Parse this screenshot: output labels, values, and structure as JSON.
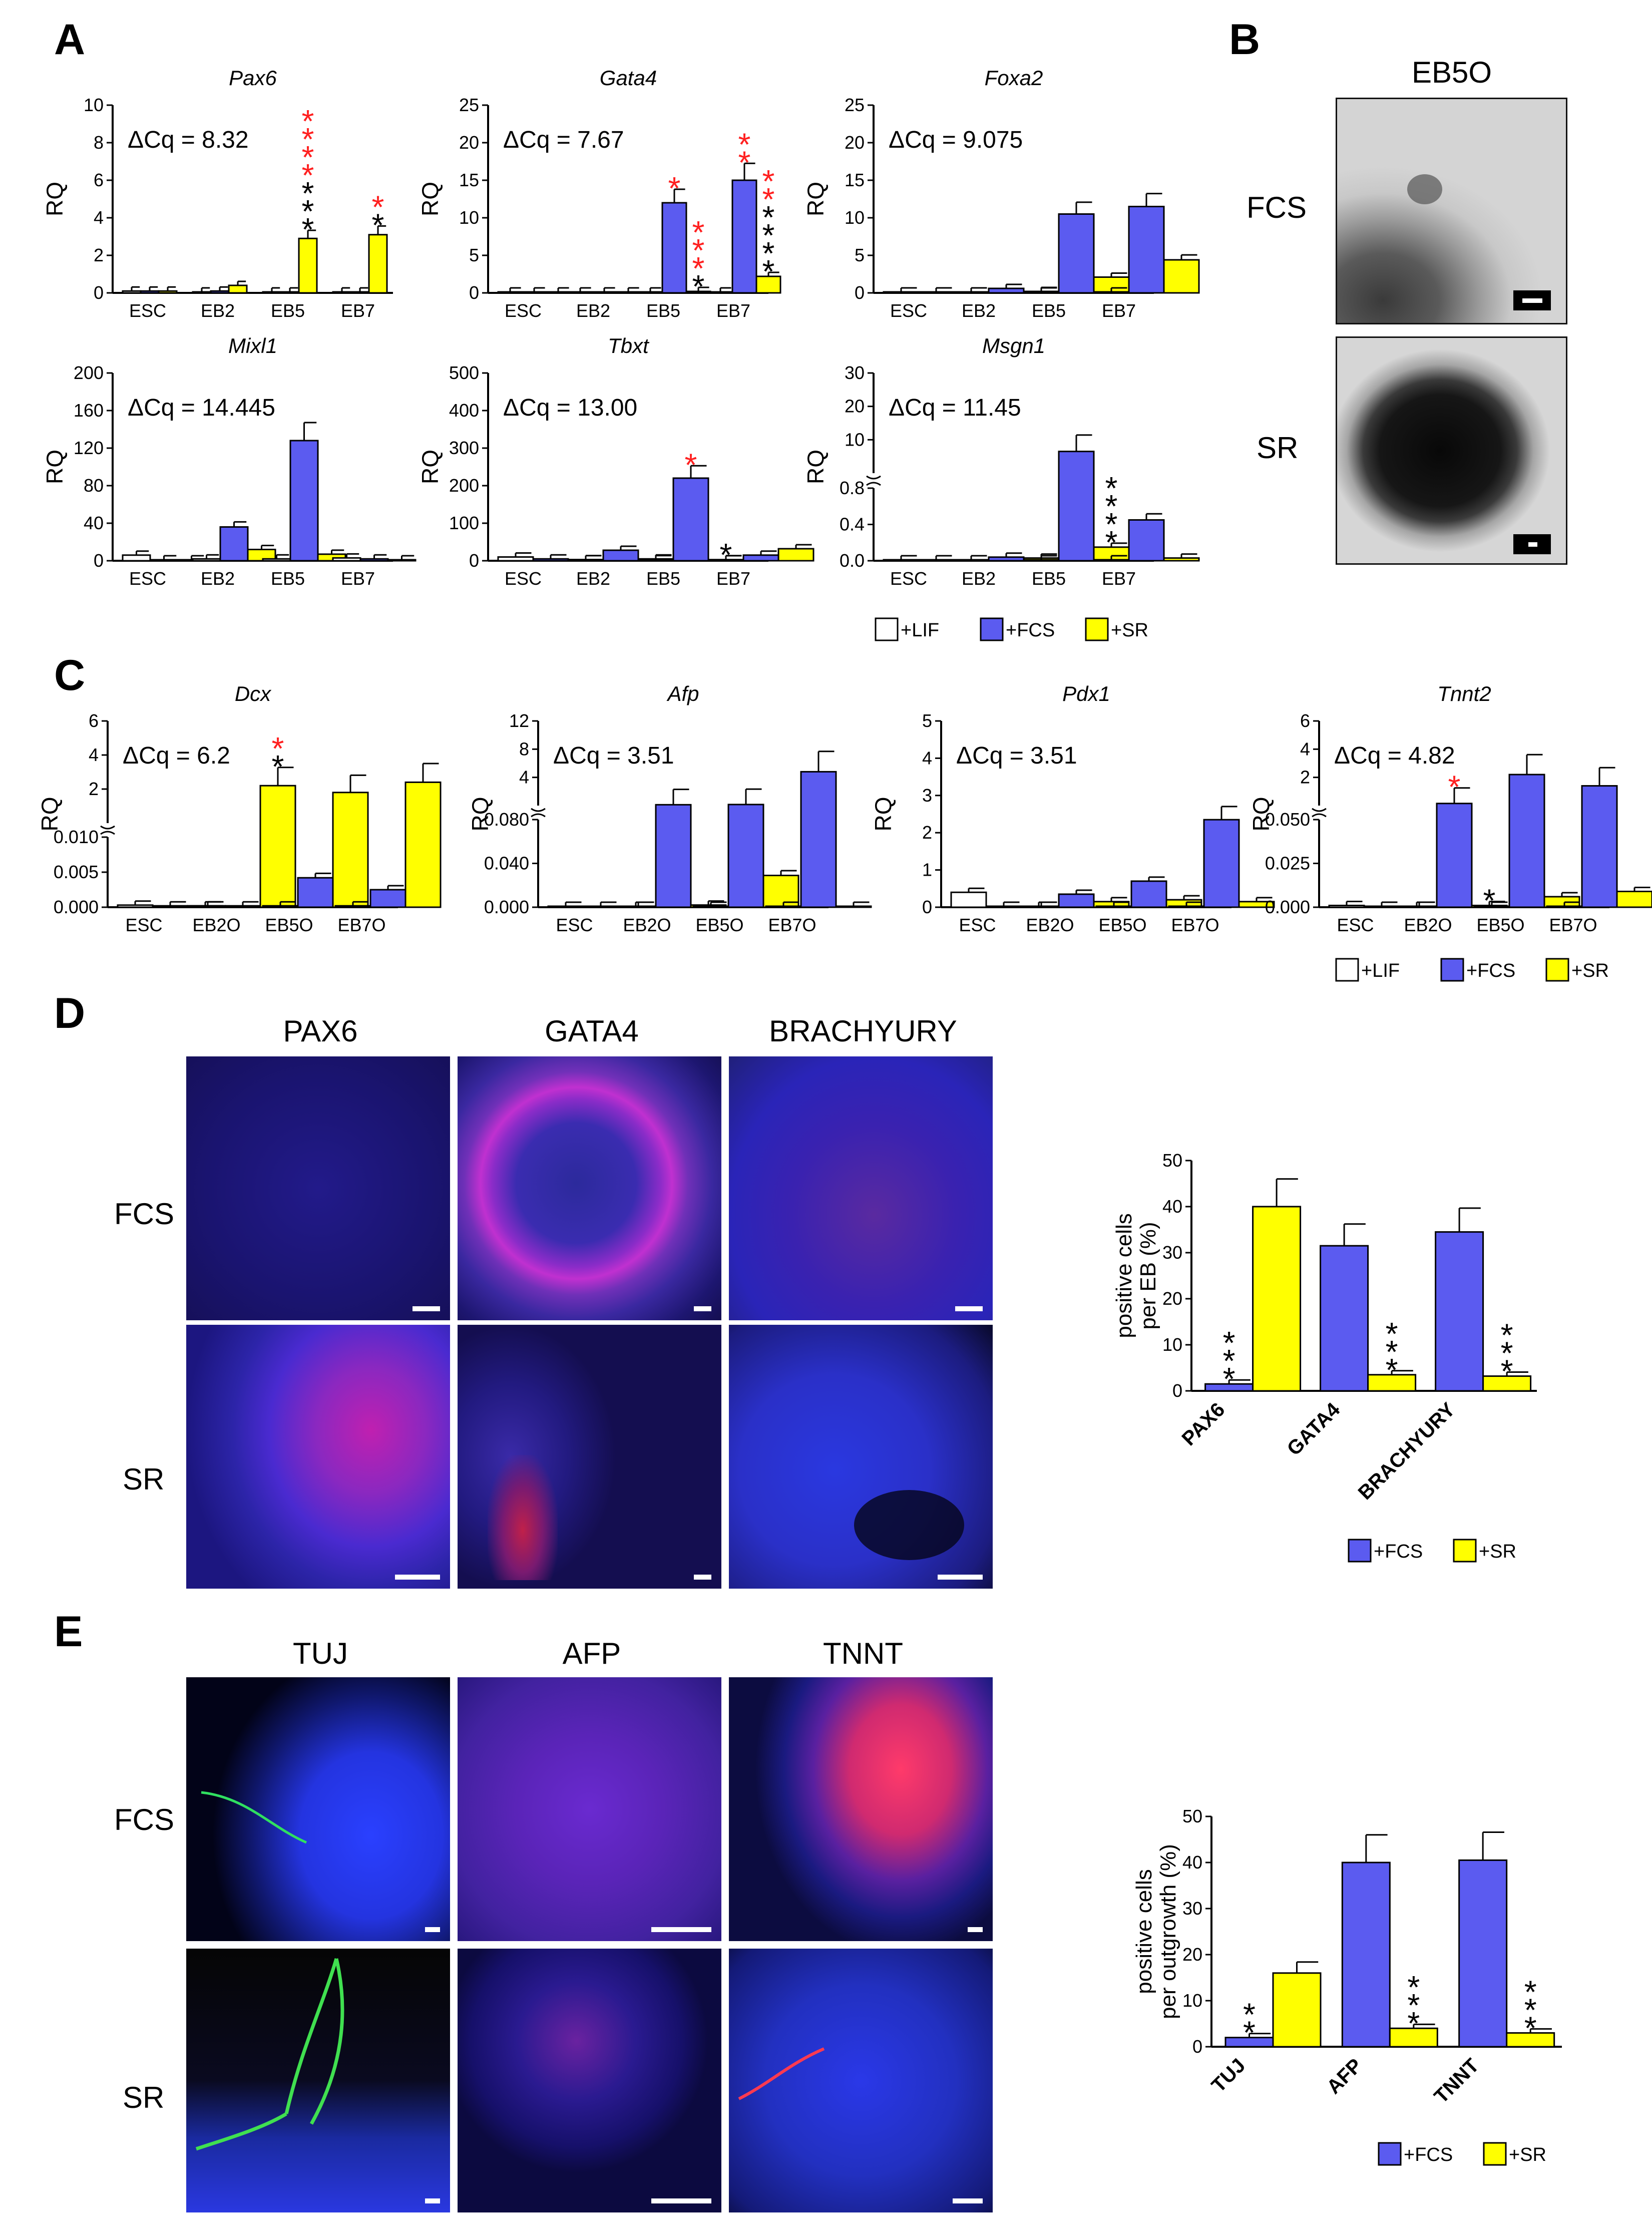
{
  "panels": {
    "a": "A",
    "b": "B",
    "c": "C",
    "d": "D",
    "e": "E"
  },
  "colors": {
    "lif": "#ffffff",
    "fcs": "#5b5bf0",
    "sr": "#ffff00",
    "sig_red": "#ff2020",
    "sig_black": "#000000",
    "fcs_img": "#3232ff"
  },
  "panelB": {
    "title": "EB5O",
    "rows": [
      "FCS",
      "SR"
    ]
  },
  "panelD": {
    "columns": [
      "PAX6",
      "GATA4",
      "BRACHYURY"
    ],
    "rows": [
      "FCS",
      "SR"
    ]
  },
  "panelE": {
    "columns": [
      "TUJ",
      "AFP",
      "TNNT"
    ],
    "rows": [
      "FCS",
      "SR"
    ]
  },
  "legendA": [
    "+LIF",
    "+FCS",
    "+SR"
  ],
  "legendC": [
    "+LIF",
    "+FCS",
    "+SR"
  ],
  "legendD": [
    "+FCS",
    "+SR"
  ],
  "legendE": [
    "+FCS",
    "+SR"
  ],
  "chart_data": [
    {
      "id": "pax6",
      "type": "bar",
      "title": "Pax6",
      "annotation": "ΔCq = 8.32",
      "ylabel": "RQ",
      "ylim": [
        0,
        10
      ],
      "yticks": [
        "0",
        "2",
        "4",
        "6",
        "8",
        "10"
      ],
      "categories": [
        "ESC",
        "EB2",
        "EB5",
        "EB7"
      ],
      "series": [
        {
          "name": "+LIF",
          "values": [
            0.1,
            0.05,
            0.05,
            0.05
          ]
        },
        {
          "name": "+FCS",
          "values": [
            0.1,
            0.1,
            0.05,
            0.05
          ]
        },
        {
          "name": "+SR",
          "values": [
            0.1,
            0.4,
            2.9,
            3.1
          ]
        }
      ],
      "annotations": [
        {
          "series": 2,
          "category": 2,
          "red": "****",
          "black": "***"
        },
        {
          "series": 2,
          "category": 3,
          "red": "*",
          "black": "*"
        }
      ]
    },
    {
      "id": "gata4",
      "type": "bar",
      "title": "Gata4",
      "annotation": "ΔCq = 7.67",
      "ylabel": "RQ",
      "ylim": [
        0,
        25
      ],
      "yticks": [
        "0",
        "5",
        "10",
        "15",
        "20",
        "25"
      ],
      "categories": [
        "ESC",
        "EB2",
        "EB5",
        "EB7"
      ],
      "series": [
        {
          "name": "+LIF",
          "values": [
            0.05,
            0.05,
            0.05,
            0.05
          ]
        },
        {
          "name": "+FCS",
          "values": [
            0.05,
            0.1,
            12,
            15
          ]
        },
        {
          "name": "+SR",
          "values": [
            0.05,
            0.05,
            0.2,
            2.2
          ]
        }
      ],
      "annotations": [
        {
          "series": 1,
          "category": 2,
          "red": "*",
          "black": ""
        },
        {
          "series": 1,
          "category": 3,
          "red": "**",
          "black": ""
        },
        {
          "series": 2,
          "category": 2,
          "red": "***",
          "black": "*"
        },
        {
          "series": 2,
          "category": 3,
          "red": "**",
          "black": "****"
        }
      ]
    },
    {
      "id": "foxa2",
      "type": "bar",
      "title": "Foxa2",
      "annotation": "ΔCq = 9.075",
      "ylabel": "RQ",
      "ylim": [
        0,
        25
      ],
      "yticks": [
        "0",
        "5",
        "10",
        "15",
        "20",
        "25"
      ],
      "categories": [
        "ESC",
        "EB2",
        "EB5",
        "EB7"
      ],
      "series": [
        {
          "name": "+LIF",
          "values": [
            0.05,
            0.05,
            0.05,
            0.05
          ]
        },
        {
          "name": "+FCS",
          "values": [
            0.05,
            0.6,
            10.5,
            11.5
          ]
        },
        {
          "name": "+SR",
          "values": [
            0.05,
            0.2,
            2.1,
            4.4
          ]
        }
      ],
      "annotations": []
    },
    {
      "id": "mixl1",
      "type": "bar",
      "title": "Mixl1",
      "annotation": "ΔCq = 14.445",
      "ylabel": "RQ",
      "ylim": [
        0,
        200
      ],
      "yticks": [
        "0",
        "40",
        "80",
        "120",
        "160",
        "200"
      ],
      "categories": [
        "ESC",
        "EB2",
        "EB5",
        "EB7"
      ],
      "series": [
        {
          "name": "+LIF",
          "values": [
            6,
            2,
            2,
            3
          ]
        },
        {
          "name": "+FCS",
          "values": [
            1,
            36,
            128,
            2
          ]
        },
        {
          "name": "+SR",
          "values": [
            1,
            12,
            7,
            1
          ]
        }
      ],
      "annotations": []
    },
    {
      "id": "tbxt",
      "type": "bar",
      "title": "Tbxt",
      "annotation": "ΔCq = 13.00",
      "ylabel": "RQ",
      "ylim": [
        0,
        500
      ],
      "yticks": [
        "0",
        "100",
        "200",
        "300",
        "400",
        "500"
      ],
      "categories": [
        "ESC",
        "EB2",
        "EB5",
        "EB7"
      ],
      "series": [
        {
          "name": "+LIF",
          "values": [
            10,
            3,
            3,
            3
          ]
        },
        {
          "name": "+FCS",
          "values": [
            5,
            28,
            220,
            15
          ]
        },
        {
          "name": "+SR",
          "values": [
            3,
            5,
            2,
            32
          ]
        }
      ],
      "annotations": [
        {
          "series": 1,
          "category": 2,
          "red": "*",
          "black": ""
        },
        {
          "series": 2,
          "category": 2,
          "red": "",
          "black": "*"
        }
      ]
    },
    {
      "id": "msgn1",
      "type": "bar",
      "title": "Msgn1",
      "annotation": "ΔCq = 11.45",
      "ylabel": "RQ",
      "broken": true,
      "lowTicks": [
        "0.0",
        "0.4",
        "0.8"
      ],
      "highTicks": [
        "10",
        "20",
        "30"
      ],
      "categories": [
        "ESC",
        "EB2",
        "EB5",
        "EB7"
      ],
      "series": [
        {
          "name": "+LIF",
          "values": [
            0.01,
            0.005,
            0.005,
            0.005
          ]
        },
        {
          "name": "+FCS",
          "values": [
            0.005,
            0.04,
            6.5,
            0.45
          ]
        },
        {
          "name": "+SR",
          "values": [
            0.005,
            0.03,
            0.15,
            0.03
          ]
        }
      ],
      "annotations": [
        {
          "series": 2,
          "category": 2,
          "red": "",
          "black": "****"
        }
      ]
    },
    {
      "id": "dcx",
      "type": "bar",
      "title": "Dcx",
      "annotation": "ΔCq = 6.2",
      "ylabel": "RQ",
      "broken": true,
      "lowTicks": [
        "0.000",
        "0.005",
        "0.010"
      ],
      "highTicks": [
        "2",
        "4",
        "6"
      ],
      "categories": [
        "ESC",
        "EB2O",
        "EB5O",
        "EB7O"
      ],
      "series": [
        {
          "name": "+LIF",
          "values": [
            0.0003,
            0.0002,
            0.0002,
            0.0002
          ]
        },
        {
          "name": "+FCS",
          "values": [
            0.0002,
            0.0002,
            0.0042,
            0.0025
          ]
        },
        {
          "name": "+SR",
          "values": [
            0.0002,
            2.2,
            1.8,
            2.4
          ]
        }
      ],
      "annotations": [
        {
          "series": 2,
          "category": 1,
          "red": "*",
          "black": "*"
        }
      ]
    },
    {
      "id": "afp",
      "type": "bar",
      "title": "Afp",
      "annotation": "ΔCq = 3.51",
      "ylabel": "RQ",
      "broken": true,
      "lowTicks": [
        "0.000",
        "0.040",
        "0.080"
      ],
      "highTicks": [
        "4",
        "8",
        "12"
      ],
      "categories": [
        "ESC",
        "EB2O",
        "EB5O",
        "EB7O"
      ],
      "series": [
        {
          "name": "+LIF",
          "values": [
            0.0005,
            0.0005,
            0.0005,
            0.0005
          ]
        },
        {
          "name": "+FCS",
          "values": [
            0.0005,
            0.12,
            0.15,
            4.8
          ]
        },
        {
          "name": "+SR",
          "values": [
            0.0005,
            0.002,
            0.029,
            0.0005
          ]
        }
      ],
      "annotations": []
    },
    {
      "id": "pdx1",
      "type": "bar",
      "title": "Pdx1",
      "annotation": "ΔCq = 3.51",
      "ylabel": "RQ",
      "ylim": [
        0,
        5
      ],
      "yticks": [
        "0",
        "1",
        "2",
        "3",
        "4",
        "5"
      ],
      "categories": [
        "ESC",
        "EB2O",
        "EB5O",
        "EB7O"
      ],
      "series": [
        {
          "name": "+LIF",
          "values": [
            0.4,
            0.02,
            0.02,
            0.02
          ]
        },
        {
          "name": "+FCS",
          "values": [
            0.02,
            0.35,
            0.7,
            2.35
          ]
        },
        {
          "name": "+SR",
          "values": [
            0.02,
            0.15,
            0.2,
            0.15
          ]
        }
      ],
      "annotations": []
    },
    {
      "id": "tnnt2",
      "type": "bar",
      "title": "Tnnt2",
      "annotation": "ΔCq = 4.82",
      "ylabel": "RQ",
      "broken": true,
      "lowTicks": [
        "0.000",
        "0.025",
        "0.050"
      ],
      "highTicks": [
        "2",
        "4",
        "6"
      ],
      "categories": [
        "ESC",
        "EB2O",
        "EB5O",
        "EB7O"
      ],
      "series": [
        {
          "name": "+LIF",
          "values": [
            0.001,
            0.0005,
            0.0005,
            0.0005
          ]
        },
        {
          "name": "+FCS",
          "values": [
            0.0005,
            0.15,
            2.2,
            1.4
          ]
        },
        {
          "name": "+SR",
          "values": [
            0.0005,
            0.001,
            0.006,
            0.009
          ]
        }
      ],
      "annotations": [
        {
          "series": 1,
          "category": 1,
          "red": "*",
          "black": ""
        },
        {
          "series": 2,
          "category": 1,
          "red": "",
          "black": "*"
        }
      ]
    },
    {
      "id": "d_quant",
      "type": "bar",
      "ylabel": "positive cells per EB (%)",
      "ylim": [
        0,
        50
      ],
      "yticks": [
        "0",
        "10",
        "20",
        "30",
        "40",
        "50"
      ],
      "categories": [
        "PAX6",
        "GATA4",
        "BRACHYURY"
      ],
      "series": [
        {
          "name": "+FCS",
          "values": [
            1.5,
            31.5,
            34.5
          ]
        },
        {
          "name": "+SR",
          "values": [
            40,
            3.5,
            3.2
          ]
        }
      ],
      "annotations": [
        {
          "series": 0,
          "category": 0,
          "black": "***"
        },
        {
          "series": 1,
          "category": 1,
          "black": "***"
        },
        {
          "series": 1,
          "category": 2,
          "black": "***"
        }
      ]
    },
    {
      "id": "e_quant",
      "type": "bar",
      "ylabel": "positive cells per outgrowth (%)",
      "ylim": [
        0,
        50
      ],
      "yticks": [
        "0",
        "10",
        "20",
        "30",
        "40",
        "50"
      ],
      "categories": [
        "TUJ",
        "AFP",
        "TNNT"
      ],
      "series": [
        {
          "name": "+FCS",
          "values": [
            2,
            40,
            40.5
          ]
        },
        {
          "name": "+SR",
          "values": [
            16,
            4,
            3
          ]
        }
      ],
      "annotations": [
        {
          "series": 0,
          "category": 0,
          "black": "**"
        },
        {
          "series": 1,
          "category": 1,
          "black": "***"
        },
        {
          "series": 1,
          "category": 2,
          "black": "***"
        }
      ]
    }
  ]
}
